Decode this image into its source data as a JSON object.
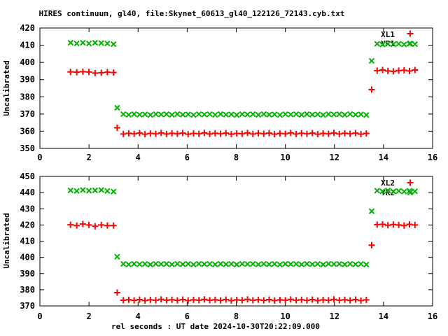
{
  "figure": {
    "title": "HIRES continuum, gl40, file:Skynet_60613_gl40_122126_72143.cyb.txt",
    "background_color": "#ffffff",
    "axis_color": "#000000",
    "red": "#ff0000",
    "green": "#00b000"
  },
  "chart_data": [
    {
      "type": "scatter",
      "panel": "top",
      "title": "HIRES continuum, gl40, file:Skynet_60613_gl40_122126_72143.cyb.txt",
      "xlabel": "",
      "ylabel": "Uncalibrated",
      "xlim": [
        0,
        16
      ],
      "ylim": [
        350,
        420
      ],
      "xticks": [
        0,
        2,
        4,
        6,
        8,
        10,
        12,
        14,
        16
      ],
      "yticks": [
        350,
        360,
        370,
        380,
        390,
        400,
        410,
        420
      ],
      "grid": false,
      "legend_position": "top-right",
      "x": [
        1.25,
        1.5,
        1.75,
        2,
        2.25,
        2.5,
        2.75,
        3,
        3.15,
        3.4,
        3.62,
        3.84,
        4.06,
        4.28,
        4.5,
        4.72,
        4.94,
        5.16,
        5.38,
        5.6,
        5.82,
        6.04,
        6.26,
        6.48,
        6.7,
        6.92,
        7.14,
        7.36,
        7.58,
        7.8,
        8.02,
        8.24,
        8.46,
        8.68,
        8.9,
        9.12,
        9.34,
        9.56,
        9.78,
        10,
        10.22,
        10.44,
        10.66,
        10.88,
        11.1,
        11.32,
        11.54,
        11.76,
        11.98,
        12.2,
        12.42,
        12.64,
        12.86,
        13.08,
        13.3,
        13.52,
        13.74,
        13.96,
        14.18,
        14.4,
        14.62,
        14.84,
        15.06,
        15.28
      ],
      "series": [
        {
          "name": "XL1",
          "marker": "plus",
          "color": "#ff0000",
          "y": [
            394.5,
            394.3,
            394.6,
            394.4,
            393.8,
            394.0,
            394.3,
            394.1,
            362.0,
            358.4,
            358.8,
            358.5,
            358.9,
            358.3,
            358.7,
            358.5,
            359.0,
            358.4,
            358.8,
            358.5,
            358.9,
            358.3,
            358.7,
            358.5,
            359.0,
            358.4,
            358.8,
            358.5,
            358.9,
            358.3,
            358.7,
            358.5,
            359.0,
            358.4,
            358.8,
            358.5,
            358.9,
            358.3,
            358.7,
            358.5,
            359.0,
            358.4,
            358.8,
            358.5,
            358.9,
            358.3,
            358.7,
            358.5,
            359.0,
            358.4,
            358.8,
            358.5,
            358.9,
            358.3,
            358.7,
            384.2,
            395.2,
            395.6,
            395.0,
            394.8,
            395.2,
            395.4,
            395.0,
            395.6
          ]
        },
        {
          "name": "YR1",
          "marker": "cross",
          "color": "#00b000",
          "y": [
            411.4,
            411.0,
            411.4,
            411.0,
            411.4,
            411.2,
            411.0,
            410.6,
            373.6,
            369.9,
            369.5,
            370.0,
            369.6,
            369.8,
            369.4,
            369.9,
            369.7,
            369.9,
            369.5,
            370.0,
            369.6,
            369.8,
            369.4,
            369.9,
            369.7,
            369.9,
            369.5,
            370.0,
            369.6,
            369.8,
            369.4,
            369.9,
            369.7,
            369.9,
            369.5,
            370.0,
            369.6,
            369.8,
            369.4,
            369.9,
            369.7,
            369.9,
            369.5,
            370.0,
            369.6,
            369.8,
            369.4,
            369.9,
            369.7,
            369.9,
            369.5,
            370.0,
            369.6,
            369.8,
            369.4,
            400.9,
            410.8,
            410.4,
            410.9,
            410.5,
            410.8,
            410.4,
            410.9,
            410.6
          ]
        }
      ]
    },
    {
      "type": "scatter",
      "panel": "bottom",
      "title": "",
      "xlabel": "rel seconds : UT date 2024-10-30T20:22:09.000",
      "ylabel": "Uncalibrated",
      "xlim": [
        0,
        16
      ],
      "ylim": [
        370,
        450
      ],
      "xticks": [
        0,
        2,
        4,
        6,
        8,
        10,
        12,
        14,
        16
      ],
      "yticks": [
        370,
        380,
        390,
        400,
        410,
        420,
        430,
        440,
        450
      ],
      "grid": false,
      "legend_position": "top-right",
      "x": [
        1.25,
        1.5,
        1.75,
        2,
        2.25,
        2.5,
        2.75,
        3,
        3.15,
        3.4,
        3.62,
        3.84,
        4.06,
        4.28,
        4.5,
        4.72,
        4.94,
        5.16,
        5.38,
        5.6,
        5.82,
        6.04,
        6.26,
        6.48,
        6.7,
        6.92,
        7.14,
        7.36,
        7.58,
        7.8,
        8.02,
        8.24,
        8.46,
        8.68,
        8.9,
        9.12,
        9.34,
        9.56,
        9.78,
        10,
        10.22,
        10.44,
        10.66,
        10.88,
        11.1,
        11.32,
        11.54,
        11.76,
        11.98,
        12.2,
        12.42,
        12.64,
        12.86,
        13.08,
        13.3,
        13.52,
        13.74,
        13.96,
        14.18,
        14.4,
        14.62,
        14.84,
        15.06,
        15.28
      ],
      "series": [
        {
          "name": "XL2",
          "marker": "plus",
          "color": "#ff0000",
          "y": [
            420.1,
            419.6,
            420.6,
            420.0,
            419.2,
            420.0,
            419.6,
            419.6,
            378.2,
            373.5,
            373.8,
            373.4,
            373.9,
            373.3,
            373.7,
            373.5,
            374.0,
            373.5,
            373.8,
            373.4,
            373.9,
            373.3,
            373.7,
            373.5,
            374.0,
            373.5,
            373.8,
            373.4,
            373.9,
            373.3,
            373.7,
            373.5,
            374.0,
            373.5,
            373.8,
            373.4,
            373.9,
            373.3,
            373.7,
            373.5,
            374.0,
            373.5,
            373.8,
            373.4,
            373.9,
            373.3,
            373.7,
            373.5,
            374.0,
            373.5,
            373.8,
            373.4,
            373.9,
            373.3,
            373.7,
            407.5,
            420.2,
            420.4,
            419.8,
            420.3,
            420.0,
            419.6,
            420.4,
            420.0
          ]
        },
        {
          "name": "YR2",
          "marker": "cross",
          "color": "#00b000",
          "y": [
            441.4,
            441.0,
            441.6,
            441.2,
            441.4,
            441.6,
            441.0,
            440.6,
            400.4,
            395.9,
            395.6,
            396.0,
            395.7,
            395.9,
            395.5,
            396.0,
            395.8,
            395.9,
            395.6,
            396.0,
            395.7,
            395.9,
            395.5,
            396.0,
            395.8,
            395.9,
            395.6,
            396.0,
            395.7,
            395.9,
            395.5,
            396.0,
            395.8,
            395.9,
            395.6,
            396.0,
            395.7,
            395.9,
            395.5,
            396.0,
            395.8,
            395.9,
            395.6,
            396.0,
            395.7,
            395.9,
            395.5,
            396.0,
            395.8,
            395.9,
            395.6,
            396.0,
            395.7,
            395.9,
            395.5,
            428.5,
            441.2,
            440.8,
            441.3,
            440.7,
            441.0,
            440.6,
            441.1,
            440.8
          ]
        }
      ]
    }
  ]
}
